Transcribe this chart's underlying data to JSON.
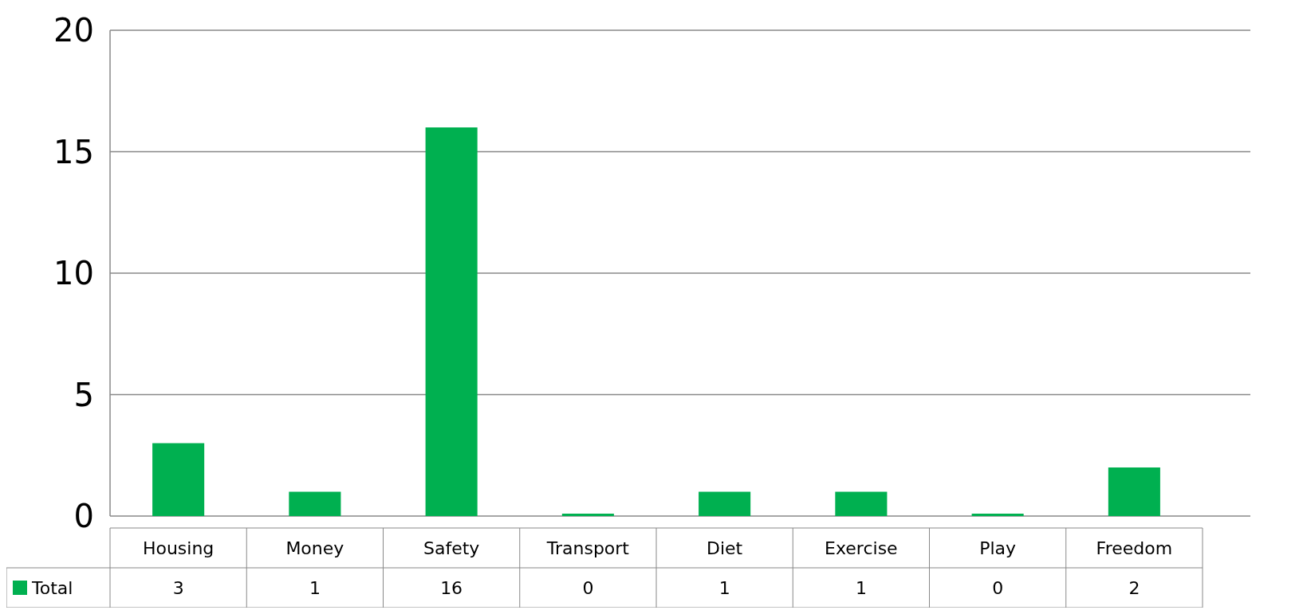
{
  "chart_data": {
    "type": "bar",
    "categories": [
      "Housing",
      "Money",
      "Safety",
      "Transport",
      "Diet",
      "Exercise",
      "Play",
      "Freedom"
    ],
    "series": [
      {
        "name": "Total",
        "color": "#00b050",
        "values": [
          3,
          1,
          16,
          0,
          1,
          1,
          0,
          2
        ]
      }
    ],
    "ylim": [
      0,
      20
    ],
    "yticks": [
      0,
      5,
      10,
      15,
      20
    ],
    "grid": "y",
    "data_labels": true,
    "legend": "bottom left"
  }
}
